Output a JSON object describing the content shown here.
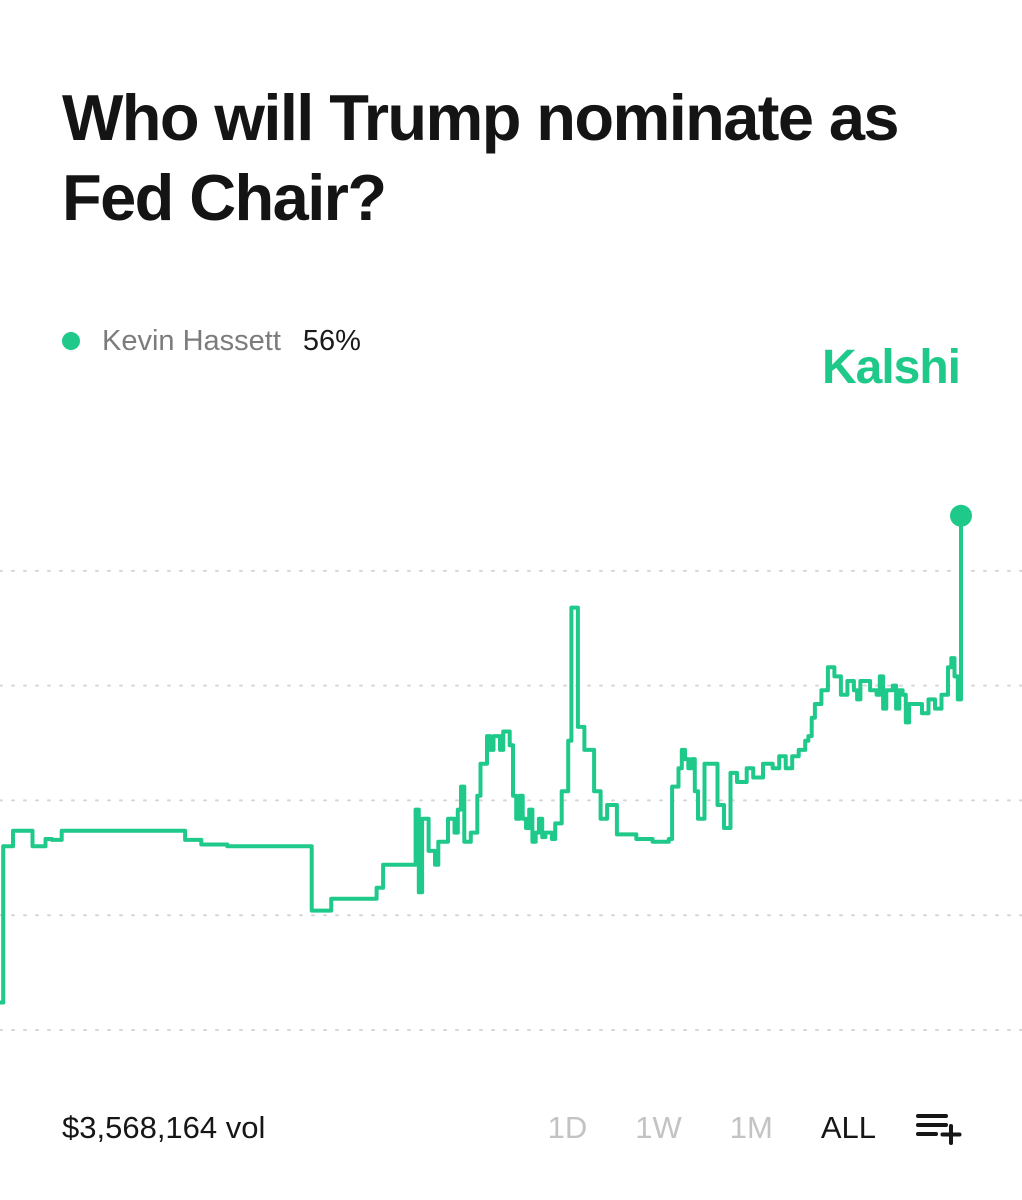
{
  "header": {
    "title": "Who will Trump nominate as Fed Chair?"
  },
  "legend": {
    "name": "Kevin Hassett",
    "value": "56%"
  },
  "brand": {
    "name": "Kalshi"
  },
  "footer": {
    "volume": "$3,568,164 vol",
    "ranges": [
      "1D",
      "1W",
      "1M",
      "ALL"
    ],
    "active_range": "ALL",
    "queue_icon": "add-to-list-icon"
  },
  "colors": {
    "accent": "#1ec98a",
    "grid": "#d6d6d6",
    "muted_text": "#c3c3c3"
  },
  "chart_data": {
    "type": "line",
    "title": "",
    "xlabel": "",
    "ylabel": "",
    "grid": true,
    "ylim": [
      0,
      60
    ],
    "gridlines": [
      0,
      12.5,
      25,
      37.5,
      50
    ],
    "x": [
      0,
      1,
      4,
      10,
      14,
      16,
      19,
      29,
      55,
      57,
      62,
      70,
      93,
      96,
      99,
      102,
      104,
      108,
      111,
      114,
      115,
      116,
      118,
      119,
      121,
      124,
      126,
      128,
      129,
      130,
      131,
      132,
      134,
      135,
      137,
      138,
      140,
      141,
      142,
      143,
      145,
      147,
      148,
      150,
      151,
      152,
      154,
      155,
      157,
      158,
      159,
      160,
      161,
      162,
      163,
      164,
      165,
      166,
      167,
      168,
      170,
      171,
      173,
      175,
      176,
      178,
      180,
      183,
      185,
      187,
      190,
      196,
      200,
      201,
      203,
      205,
      206,
      207,
      209,
      210,
      211,
      212,
      213,
      214,
      215,
      217,
      219,
      221,
      223,
      225,
      227,
      230,
      232,
      235,
      238,
      240,
      242,
      244,
      246,
      248,
      249,
      250,
      251,
      253,
      255,
      257,
      259,
      261,
      263,
      264,
      265,
      266,
      268,
      270,
      271,
      272,
      273,
      275,
      276,
      277,
      278,
      279,
      280,
      282,
      284,
      286,
      288,
      290,
      292,
      293,
      294,
      295,
      296
    ],
    "y": [
      3,
      20,
      21.7,
      20,
      20.8,
      20.7,
      21.7,
      21.7,
      21.7,
      20.7,
      20.2,
      20,
      20,
      13,
      13,
      14.3,
      14.3,
      14.3,
      14.3,
      14.3,
      14.3,
      15.5,
      18,
      18,
      18,
      18,
      18,
      24,
      15,
      23,
      23,
      19.5,
      18,
      20.5,
      20.5,
      23,
      21.5,
      24,
      26.5,
      20.5,
      21.5,
      25.5,
      29,
      32,
      30.5,
      32,
      30.5,
      32.5,
      31,
      25.5,
      23,
      25.5,
      23,
      22,
      24,
      20.5,
      21.5,
      23,
      21,
      21.5,
      20.8,
      22.5,
      26,
      31.5,
      46,
      33,
      30.5,
      26,
      23,
      24.5,
      21.3,
      20.8,
      20.8,
      20.5,
      20.5,
      20.5,
      20.8,
      26.5,
      28.5,
      30.5,
      29.5,
      28.5,
      29.5,
      26,
      23,
      29,
      29,
      24.5,
      22,
      28,
      27,
      28.5,
      27.5,
      29,
      28.5,
      29.8,
      28.5,
      29.8,
      30.5,
      31.5,
      32,
      34,
      35.5,
      37,
      39.5,
      38.5,
      36.5,
      38,
      37,
      36,
      38,
      38,
      37,
      36.5,
      38.5,
      35,
      37,
      37.5,
      35,
      37,
      36.5,
      33.5,
      35.5,
      35.5,
      34.5,
      36,
      35,
      36.5,
      39.5,
      40.5,
      38.5,
      36,
      56
    ]
  }
}
